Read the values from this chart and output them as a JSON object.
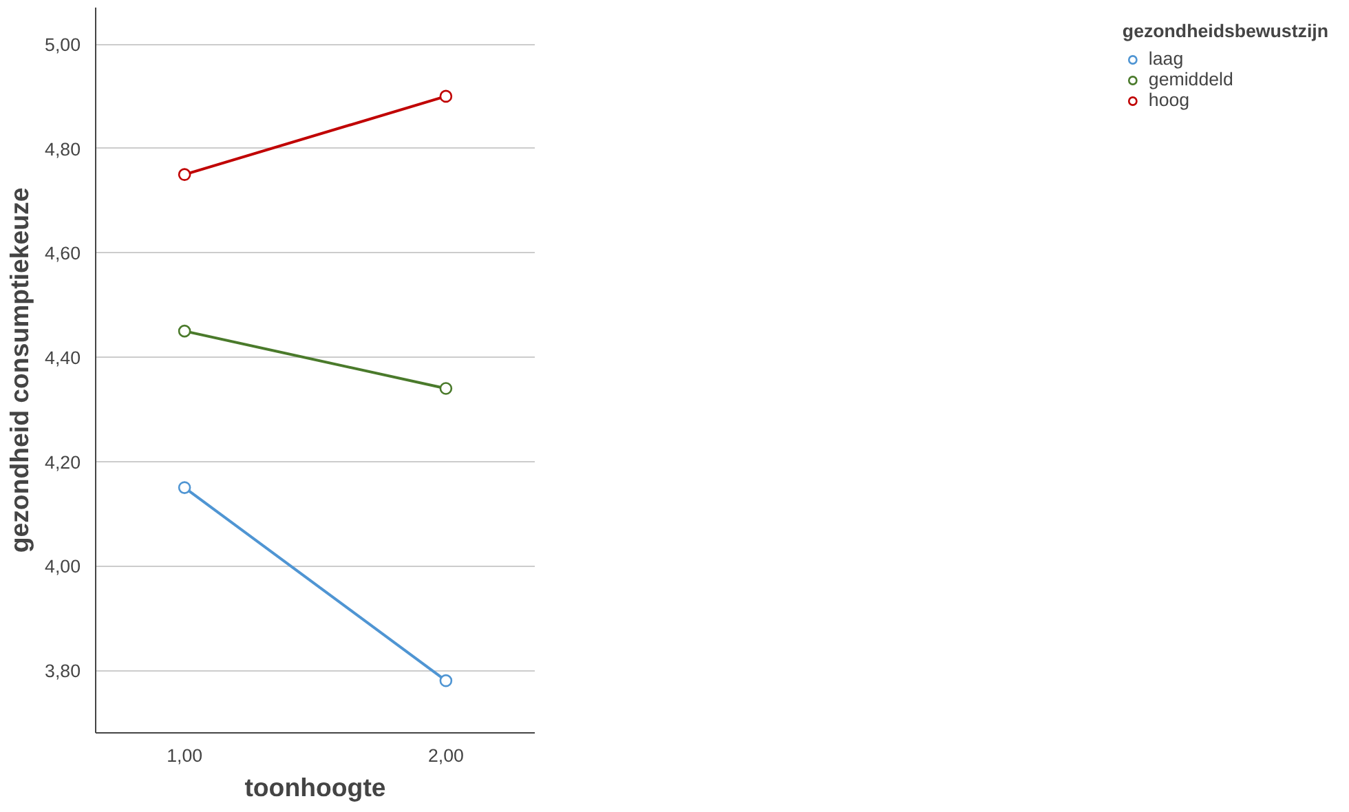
{
  "chart_data": {
    "type": "line",
    "xlabel": "toonhoogte",
    "ylabel": "gezondheid consumptiekeuze",
    "legend_title": "gezondheidsbewustzijn",
    "x": [
      1,
      2
    ],
    "series": [
      {
        "name": "laag",
        "color": "#4f95d3",
        "values": [
          4.15,
          3.78
        ]
      },
      {
        "name": "gemiddeld",
        "color": "#4a7a2b",
        "values": [
          4.45,
          4.34
        ]
      },
      {
        "name": "hoog",
        "color": "#c00000",
        "values": [
          4.75,
          4.9
        ]
      }
    ],
    "xlim": [
      0.66,
      2.34
    ],
    "xticks": [
      {
        "value": 1,
        "label": "1,00"
      },
      {
        "value": 2,
        "label": "2,00"
      }
    ],
    "ylim": [
      3.68,
      5.07
    ],
    "yticks": [
      {
        "value": 3.8,
        "label": "3,80"
      },
      {
        "value": 4.0,
        "label": "4,00"
      },
      {
        "value": 4.2,
        "label": "4,20"
      },
      {
        "value": 4.4,
        "label": "4,40"
      },
      {
        "value": 4.6,
        "label": "4,60"
      },
      {
        "value": 4.8,
        "label": "4,80"
      },
      {
        "value": 5.0,
        "label": "5,00"
      }
    ],
    "grid": "y",
    "legend": "right",
    "marker": "circle",
    "line_style": "solid"
  }
}
